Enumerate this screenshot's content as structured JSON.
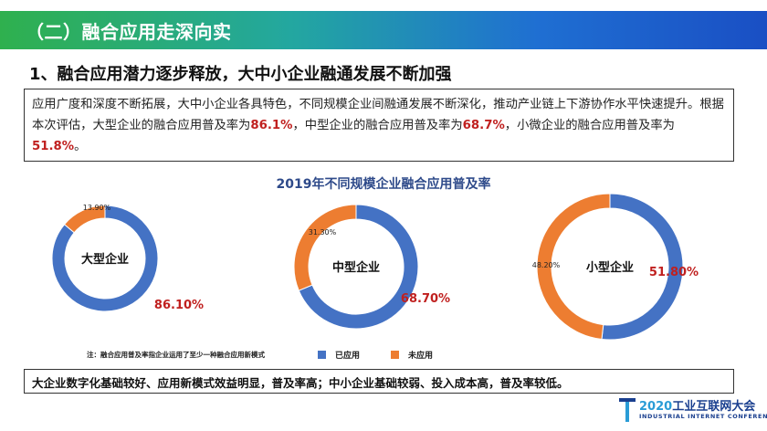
{
  "header": {
    "title": "（二）融合应用走深向实"
  },
  "heading": "1、融合应用潜力逐步释放，大中小企业融通发展不断加强",
  "summary": {
    "part1": "应用广度和深度不断拓展，大中小企业各具特色，不同规模企业间融通发展不断深化，推动产业链上下游协作水平快速提升。根据本次评估，大型企业的融合应用普及率为",
    "v1": "86.1%",
    "part2": "，中型企业的融合应用普及率为",
    "v2": "68.7%",
    "part3": "，小微企业的融合应用普及率为",
    "v3": "51.8%",
    "part4": "。"
  },
  "chart_data": {
    "type": "pie",
    "title": "2019年不同规模企业融合应用普及率",
    "series_names": [
      "已应用",
      "未应用"
    ],
    "colors": {
      "applied": "#4472c4",
      "not_applied": "#ed7d31",
      "applied_label": "#c0201f"
    },
    "charts": [
      {
        "label": "大型企业",
        "applied": 86.1,
        "not_applied": 13.9,
        "applied_label": "86.10%",
        "not_applied_label": "13.90%"
      },
      {
        "label": "中型企业",
        "applied": 68.7,
        "not_applied": 31.3,
        "applied_label": "68.70%",
        "not_applied_label": "31.30%"
      },
      {
        "label": "小型企业",
        "applied": 51.8,
        "not_applied": 48.2,
        "applied_label": "51.80%",
        "not_applied_label": "48.20%"
      }
    ]
  },
  "footnote": "注：融合应用普及率指企业运用了至少一种融合应用新模式",
  "legend": {
    "applied": "已应用",
    "not_applied": "未应用"
  },
  "conclusion": "大企业数字化基础较好、应用新模式效益明显，普及率高；中小企业基础较弱、投入成本高，普及率较低。",
  "logo": {
    "year": "2020",
    "name": "工业互联网大会",
    "subtitle": "INDUSTRIAL INTERNET CONFERENCE"
  }
}
